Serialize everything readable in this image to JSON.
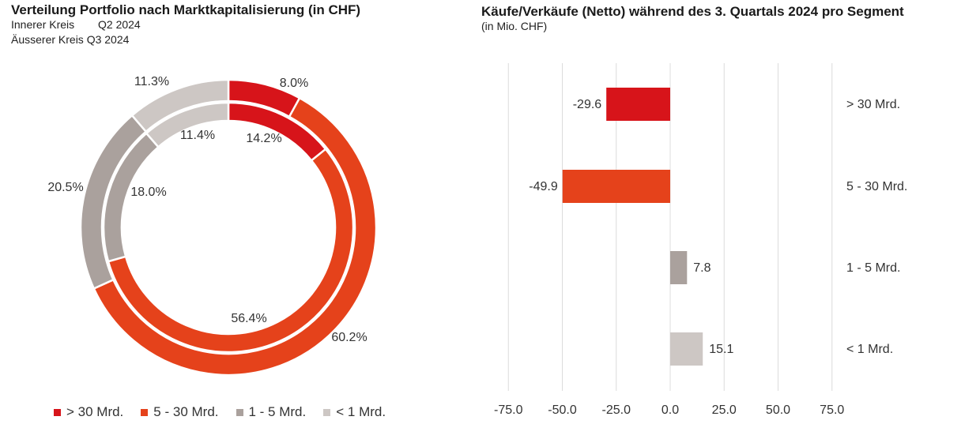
{
  "left": {
    "title": "Verteilung Portfolio nach Marktkapitalisierung (in CHF)",
    "inner_label": "Innerer Kreis",
    "inner_period": "Q2 2024",
    "outer_label_line": "Äusserer Kreis Q3 2024"
  },
  "right": {
    "title": "Käufe/Verkäufe (Netto) während des 3. Quartals 2024 pro Segment",
    "subtitle": "(in Mio. CHF)"
  },
  "legend": [
    {
      "label": "> 30 Mrd.",
      "color": "#d7141a"
    },
    {
      "label": "5 - 30 Mrd.",
      "color": "#e5421b"
    },
    {
      "label": "1 - 5 Mrd.",
      "color": "#aaa19d"
    },
    {
      "label": "< 1 Mrd.",
      "color": "#cdc7c4"
    }
  ],
  "chart_data": [
    {
      "type": "pie",
      "subtype": "double-donut",
      "categories": [
        "> 30 Mrd.",
        "5 - 30 Mrd.",
        "1 - 5 Mrd.",
        "< 1 Mrd."
      ],
      "colors": [
        "#d7141a",
        "#e5421b",
        "#aaa19d",
        "#cdc7c4"
      ],
      "series": [
        {
          "name": "Q2 2024",
          "ring": "inner",
          "values": [
            14.2,
            56.4,
            18.0,
            11.4
          ],
          "labels": [
            "14.2%",
            "56.4%",
            "18.0%",
            "11.4%"
          ]
        },
        {
          "name": "Q3 2024",
          "ring": "outer",
          "values": [
            8.0,
            60.2,
            20.5,
            11.3
          ],
          "labels": [
            "8.0%",
            "60.2%",
            "20.5%",
            "11.3%"
          ]
        }
      ]
    },
    {
      "type": "bar",
      "orientation": "horizontal",
      "categories": [
        "> 30 Mrd.",
        "5 - 30 Mrd.",
        "1 - 5 Mrd.",
        "< 1 Mrd."
      ],
      "values": [
        -29.6,
        -49.9,
        7.8,
        15.1
      ],
      "value_labels": [
        "-29.6",
        "-49.9",
        "7.8",
        "15.1"
      ],
      "colors": [
        "#d7141a",
        "#e5421b",
        "#aaa19d",
        "#cdc7c4"
      ],
      "xlim": [
        -75.0,
        75.0
      ],
      "xticks": [
        "-75.0",
        "-50.0",
        "-25.0",
        "0.0",
        "25.0",
        "50.0",
        "75.0"
      ],
      "grid": true
    }
  ]
}
